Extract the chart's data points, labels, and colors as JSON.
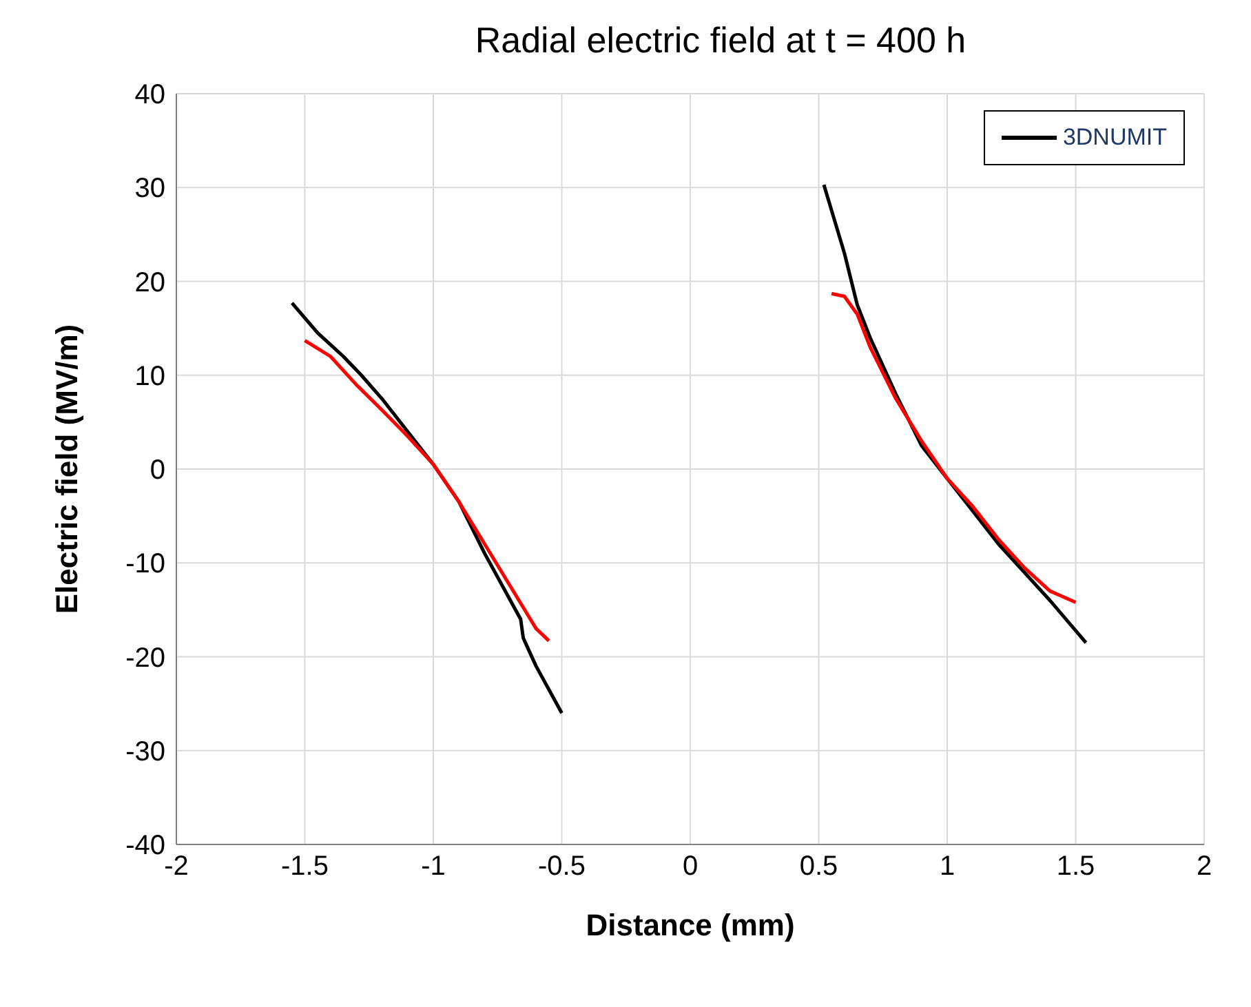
{
  "chart_data": {
    "type": "line",
    "title": "Radial electric field at t = 400 h",
    "xlabel": "Distance (mm)",
    "ylabel": "Electric field (MV/m)",
    "xlim": [
      -2,
      2
    ],
    "xticks": [
      -2,
      -1.5,
      -1,
      -0.5,
      0,
      0.5,
      1,
      1.5,
      2
    ],
    "ylim": [
      -40,
      40
    ],
    "yticks": [
      -40,
      -30,
      -20,
      -10,
      0,
      10,
      20,
      30,
      40
    ],
    "grid": true,
    "legend": "top right",
    "marker": "none",
    "line_style": "solid",
    "series": [
      {
        "name": "3DNUMIT",
        "color": "#000000",
        "x": [
          -1.55,
          -1.45,
          -1.35,
          -1.28,
          -1.2,
          -1.1,
          -1,
          -0.9,
          -0.8,
          -0.7,
          -0.66,
          -0.65,
          -0.6,
          -0.5,
          null,
          0.52,
          0.6,
          0.65,
          0.7,
          0.8,
          0.9,
          1,
          1.1,
          1.2,
          1.3,
          1.4,
          1.54
        ],
        "values": [
          17.7,
          14.5,
          12,
          10,
          7.5,
          4,
          0.5,
          -3.5,
          -9,
          -14,
          -16,
          -18,
          -21,
          -26,
          null,
          30.3,
          23,
          17.5,
          14,
          8,
          2.5,
          -1,
          -4.5,
          -8,
          -11,
          -14,
          -18.5
        ]
      },
      {
        "color": "#ff0000",
        "x": [
          -1.5,
          -1.4,
          -1.3,
          -1.2,
          -1.1,
          -1,
          -0.9,
          -0.8,
          -0.7,
          -0.6,
          -0.55,
          null,
          0.55,
          0.6,
          0.65,
          0.7,
          0.8,
          0.9,
          1,
          1.1,
          1.2,
          1.3,
          1.4,
          1.5
        ],
        "values": [
          13.7,
          12,
          9,
          6.3,
          3.5,
          0.5,
          -3.5,
          -8,
          -12.5,
          -17,
          -18.3,
          null,
          18.7,
          18.4,
          16.5,
          13,
          7.5,
          3,
          -1,
          -4,
          -7.5,
          -10.5,
          -13,
          -14.2
        ]
      }
    ]
  }
}
